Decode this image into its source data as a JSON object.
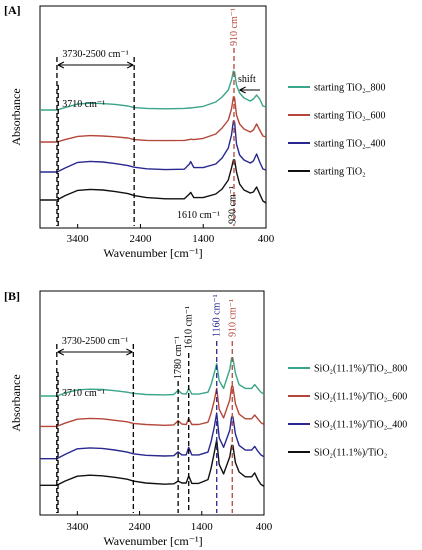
{
  "chart_data": [
    {
      "type": "line",
      "panel_label": "[A]",
      "xlabel": "Wavenumber [cm⁻¹]",
      "ylabel": "Absorbance",
      "xlim": [
        4000,
        400
      ],
      "x_ticks": [
        3400,
        2400,
        1400,
        400
      ],
      "annotations": {
        "range_label": "3730-2500  cm⁻¹",
        "range": [
          3730,
          2500
        ],
        "line_3710_label": "3710  cm⁻¹",
        "line_3710": 3710,
        "line_1610_label": "1610  cm⁻¹",
        "line_1610": 1610,
        "line_910_label": "910 cm⁻¹",
        "line_910": 910,
        "line_930_label": "930 cm⁻¹",
        "line_930": 930,
        "shift_label": "shift"
      },
      "legend_position": "right",
      "series": [
        {
          "name": "starting  TiO₂_800",
          "color": "#3aa58a",
          "x": [
            4000,
            3730,
            3600,
            3400,
            3200,
            3000,
            2800,
            2600,
            2500,
            2300,
            2000,
            1700,
            1620,
            1600,
            1550,
            1400,
            1200,
            1100,
            1000,
            950,
            920,
            900,
            870,
            820,
            750,
            650,
            600,
            550,
            500,
            450,
            400
          ],
          "y": [
            0.58,
            0.58,
            0.592,
            0.61,
            0.614,
            0.612,
            0.608,
            0.6,
            0.592,
            0.588,
            0.586,
            0.588,
            0.59,
            0.59,
            0.592,
            0.598,
            0.62,
            0.645,
            0.68,
            0.73,
            0.775,
            0.77,
            0.705,
            0.665,
            0.64,
            0.625,
            0.635,
            0.655,
            0.635,
            0.6,
            0.595
          ]
        },
        {
          "name": "starting  TiO₂_600",
          "color": "#b5473a",
          "x": [
            4000,
            3730,
            3600,
            3400,
            3200,
            3000,
            2800,
            2600,
            2500,
            2300,
            2000,
            1700,
            1620,
            1600,
            1550,
            1400,
            1200,
            1100,
            1000,
            950,
            920,
            900,
            870,
            820,
            750,
            650,
            600,
            550,
            500,
            450,
            400
          ],
          "y": [
            0.42,
            0.42,
            0.432,
            0.448,
            0.452,
            0.45,
            0.446,
            0.44,
            0.432,
            0.428,
            0.427,
            0.428,
            0.432,
            0.434,
            0.432,
            0.438,
            0.46,
            0.49,
            0.53,
            0.585,
            0.645,
            0.64,
            0.555,
            0.51,
            0.485,
            0.47,
            0.48,
            0.51,
            0.48,
            0.45,
            0.445
          ]
        },
        {
          "name": "starting  TiO₂_400",
          "color": "#28288f",
          "x": [
            4000,
            3730,
            3600,
            3400,
            3200,
            3000,
            2800,
            2600,
            2500,
            2300,
            2000,
            1700,
            1620,
            1600,
            1550,
            1400,
            1200,
            1100,
            1000,
            950,
            920,
            900,
            870,
            820,
            750,
            650,
            600,
            550,
            500,
            450,
            400
          ],
          "y": [
            0.27,
            0.27,
            0.29,
            0.318,
            0.323,
            0.32,
            0.312,
            0.302,
            0.294,
            0.286,
            0.282,
            0.284,
            0.31,
            0.322,
            0.292,
            0.292,
            0.31,
            0.34,
            0.39,
            0.455,
            0.525,
            0.52,
            0.41,
            0.355,
            0.33,
            0.315,
            0.325,
            0.36,
            0.32,
            0.285,
            0.28
          ]
        },
        {
          "name": "starting  TiO₂",
          "color": "#111111",
          "x": [
            4000,
            3730,
            3600,
            3400,
            3200,
            3000,
            2800,
            2600,
            2500,
            2300,
            2000,
            1700,
            1620,
            1600,
            1550,
            1400,
            1200,
            1100,
            1000,
            950,
            920,
            900,
            870,
            820,
            750,
            650,
            600,
            550,
            500,
            450,
            400
          ],
          "y": [
            0.13,
            0.13,
            0.152,
            0.178,
            0.183,
            0.18,
            0.172,
            0.162,
            0.152,
            0.142,
            0.136,
            0.136,
            0.16,
            0.168,
            0.142,
            0.142,
            0.16,
            0.185,
            0.23,
            0.29,
            0.33,
            0.33,
            0.27,
            0.21,
            0.18,
            0.165,
            0.17,
            0.195,
            0.16,
            0.125,
            0.115
          ]
        }
      ]
    },
    {
      "type": "line",
      "panel_label": "[B]",
      "xlabel": "Wavenumber [cm⁻¹]",
      "ylabel": "Absorbance",
      "xlim": [
        4000,
        400
      ],
      "x_ticks": [
        3400,
        2400,
        1400,
        400
      ],
      "annotations": {
        "range_label": "3730-2500  cm⁻¹",
        "range": [
          3730,
          2500
        ],
        "line_3710_label": "3710  cm⁻¹",
        "line_3710": 3710,
        "line_1780_label": "1780 cm⁻¹",
        "line_1780": 1780,
        "line_1610_label": "1610 cm⁻¹",
        "line_1610": 1610,
        "line_1160_label": "1160 cm⁻¹",
        "line_1160": 1160,
        "line_910_label": "910 cm⁻¹",
        "line_910": 910
      },
      "legend_position": "right",
      "series": [
        {
          "name": "SiO₂(11.1%)/TiO₂_800",
          "color": "#3aa58a",
          "x": [
            4000,
            3730,
            3600,
            3400,
            3200,
            3000,
            2800,
            2600,
            2500,
            2300,
            2000,
            1850,
            1780,
            1720,
            1650,
            1610,
            1560,
            1450,
            1300,
            1250,
            1200,
            1160,
            1120,
            1050,
            950,
            920,
            900,
            860,
            800,
            700,
            600,
            550,
            500,
            450,
            400
          ],
          "y": [
            0.6,
            0.6,
            0.615,
            0.632,
            0.636,
            0.634,
            0.628,
            0.62,
            0.614,
            0.608,
            0.606,
            0.608,
            0.63,
            0.612,
            0.61,
            0.64,
            0.61,
            0.61,
            0.62,
            0.66,
            0.72,
            0.77,
            0.68,
            0.64,
            0.74,
            0.8,
            0.8,
            0.72,
            0.66,
            0.64,
            0.64,
            0.66,
            0.64,
            0.62,
            0.61
          ]
        },
        {
          "name": "SiO₂(11.1%)/TiO₂_600",
          "color": "#b5473a",
          "x": [
            4000,
            3730,
            3600,
            3400,
            3200,
            3000,
            2800,
            2600,
            2500,
            2300,
            2000,
            1850,
            1780,
            1720,
            1650,
            1610,
            1560,
            1450,
            1300,
            1250,
            1200,
            1160,
            1120,
            1050,
            950,
            920,
            900,
            860,
            800,
            700,
            600,
            550,
            500,
            450,
            400
          ],
          "y": [
            0.44,
            0.44,
            0.457,
            0.478,
            0.482,
            0.48,
            0.472,
            0.464,
            0.456,
            0.45,
            0.446,
            0.448,
            0.47,
            0.452,
            0.45,
            0.482,
            0.45,
            0.45,
            0.462,
            0.51,
            0.575,
            0.64,
            0.53,
            0.485,
            0.58,
            0.65,
            0.65,
            0.56,
            0.505,
            0.48,
            0.48,
            0.5,
            0.48,
            0.46,
            0.45
          ]
        },
        {
          "name": "SiO₂(11.1%)/TiO₂_400",
          "color": "#28288f",
          "x": [
            4000,
            3730,
            3600,
            3400,
            3200,
            3000,
            2800,
            2600,
            2500,
            2300,
            2000,
            1850,
            1780,
            1720,
            1650,
            1610,
            1560,
            1450,
            1300,
            1250,
            1200,
            1160,
            1120,
            1050,
            950,
            920,
            900,
            860,
            800,
            700,
            600,
            550,
            500,
            450,
            400
          ],
          "y": [
            0.27,
            0.27,
            0.292,
            0.322,
            0.327,
            0.324,
            0.316,
            0.305,
            0.296,
            0.288,
            0.284,
            0.286,
            0.306,
            0.29,
            0.29,
            0.33,
            0.29,
            0.29,
            0.305,
            0.36,
            0.435,
            0.51,
            0.38,
            0.33,
            0.42,
            0.49,
            0.49,
            0.4,
            0.34,
            0.315,
            0.315,
            0.335,
            0.31,
            0.29,
            0.28
          ]
        },
        {
          "name": "SiO₂(11.1%)/TiO₂",
          "color": "#111111",
          "x": [
            4000,
            3730,
            3600,
            3400,
            3200,
            3000,
            2800,
            2600,
            2500,
            2300,
            2000,
            1850,
            1780,
            1720,
            1650,
            1610,
            1560,
            1450,
            1300,
            1250,
            1200,
            1160,
            1120,
            1050,
            950,
            920,
            900,
            860,
            800,
            700,
            600,
            550,
            500,
            450,
            400
          ],
          "y": [
            0.13,
            0.13,
            0.152,
            0.178,
            0.183,
            0.18,
            0.172,
            0.162,
            0.152,
            0.142,
            0.136,
            0.138,
            0.152,
            0.142,
            0.142,
            0.18,
            0.14,
            0.14,
            0.16,
            0.22,
            0.3,
            0.37,
            0.24,
            0.19,
            0.28,
            0.34,
            0.34,
            0.25,
            0.2,
            0.175,
            0.175,
            0.195,
            0.16,
            0.135,
            0.125
          ]
        }
      ]
    }
  ]
}
